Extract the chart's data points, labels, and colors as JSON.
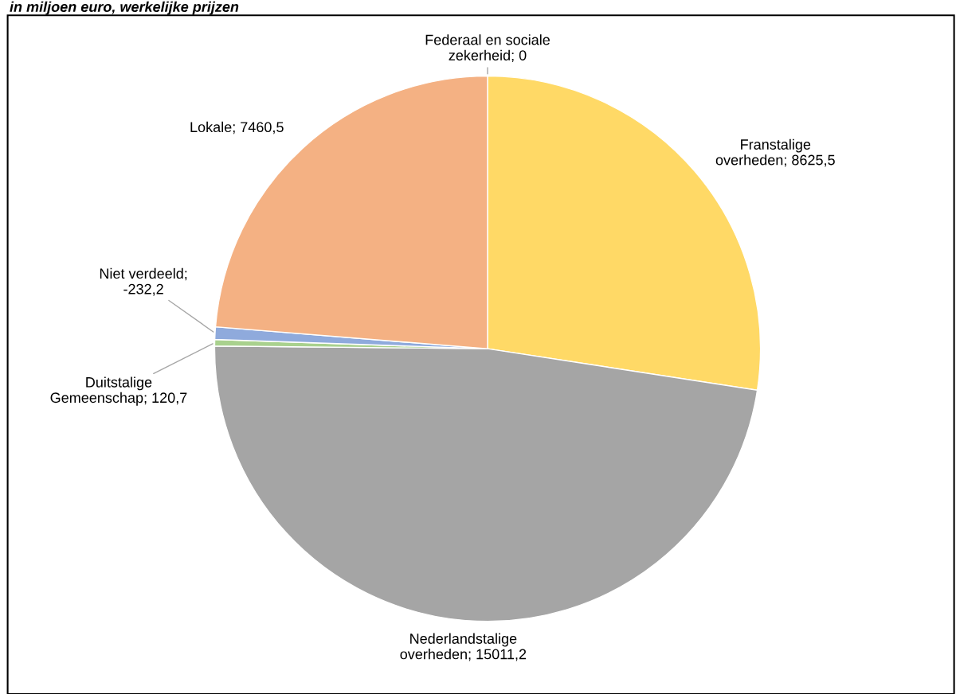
{
  "chart_data": {
    "type": "pie",
    "subtitle": "in miljoen euro, werkelijke prijzen",
    "categories": [
      "Federaal en sociale zekerheid; 0",
      "Franstalige overheden; 8625,5",
      "Nederlandstalige overheden; 15011,2",
      "Duitstalige Gemeenschap; 120,7",
      "Niet verdeeld; -232,2",
      "Lokale; 7460,5"
    ],
    "values": [
      0,
      27.43,
      47.73,
      0.38,
      0.74,
      23.72
    ],
    "colors": [
      "#5b9bd5",
      "#ffd966",
      "#a5a5a5",
      "#a9d18e",
      "#8faadc",
      "#f4b183"
    ]
  }
}
